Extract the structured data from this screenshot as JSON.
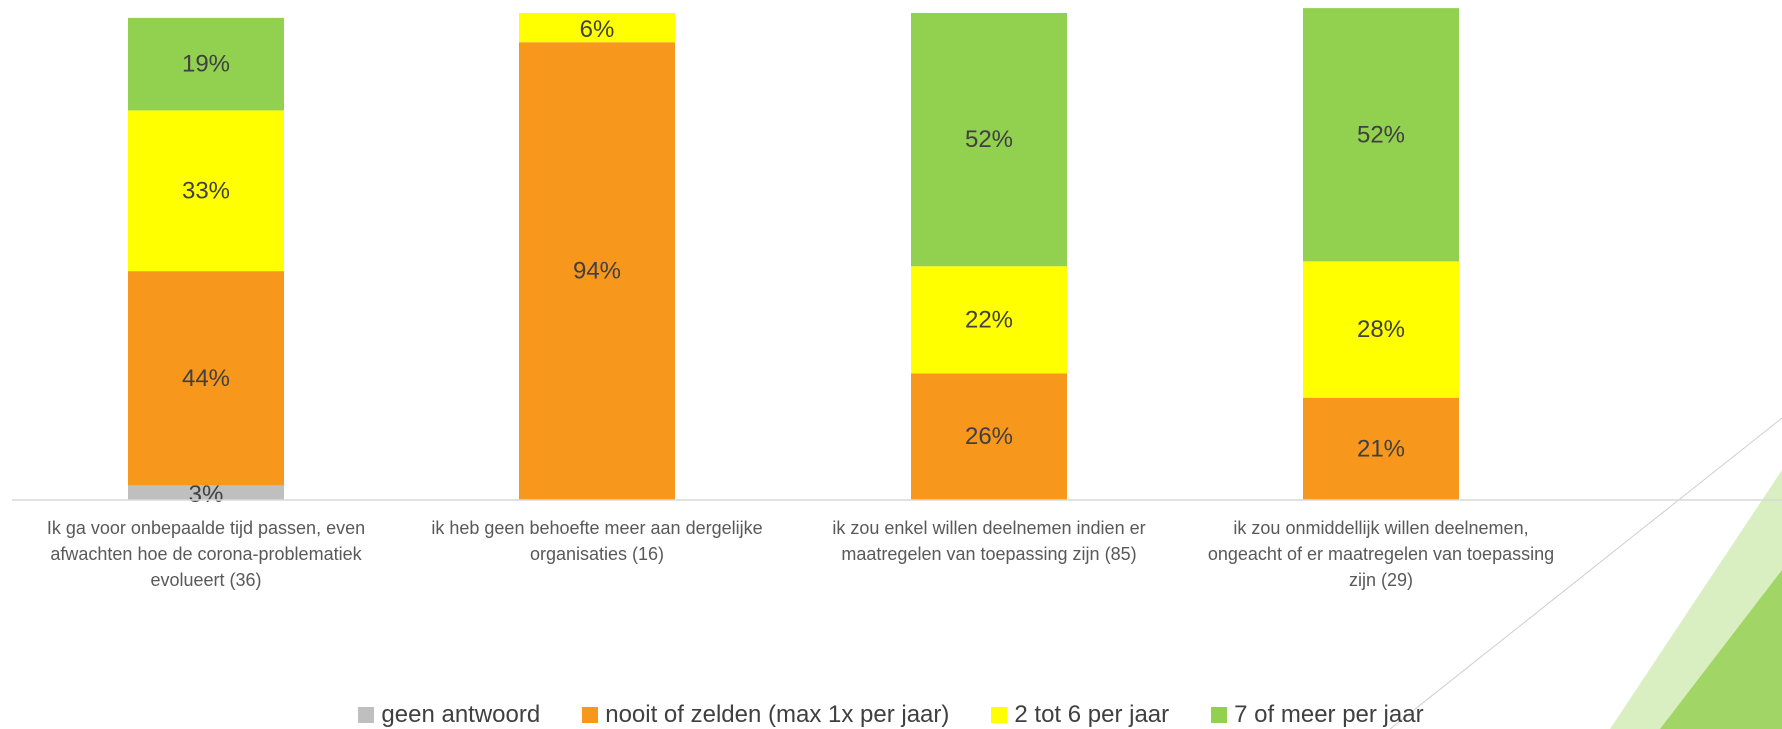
{
  "chart_data": {
    "type": "bar",
    "stacked": true,
    "categories": [
      "Ik ga voor onbepaalde tijd passen, even afwachten hoe de corona-problematiek evolueert (36)",
      "ik heb geen behoefte meer aan dergelijke organisaties (16)",
      "ik zou enkel willen deelnemen indien er maatregelen van toepassing zijn (85)",
      "ik zou onmiddellijk willen deelnemen, ongeacht of er maatregelen van toepassing zijn (29)"
    ],
    "category_lines": [
      [
        "Ik ga voor onbepaalde tijd passen, even",
        "afwachten hoe de corona-problematiek",
        "evolueert (36)"
      ],
      [
        "ik heb geen behoefte meer aan dergelijke",
        "organisaties (16)"
      ],
      [
        "ik zou enkel willen deelnemen indien er",
        "maatregelen van toepassing zijn (85)"
      ],
      [
        "ik zou onmiddellijk willen deelnemen,",
        "ongeacht of er maatregelen van toepassing",
        "zijn (29)"
      ]
    ],
    "series": [
      {
        "name": "geen antwoord",
        "color": "#BFBFBF",
        "values": [
          3,
          0,
          0,
          0
        ]
      },
      {
        "name": "nooit of zelden (max 1x per jaar)",
        "color": "#F7981D",
        "values": [
          44,
          94,
          26,
          21
        ]
      },
      {
        "name": "2 tot 6 per jaar",
        "color": "#FFFF00",
        "values": [
          33,
          6,
          22,
          28
        ]
      },
      {
        "name": "7 of meer per jaar",
        "color": "#92D050",
        "values": [
          19,
          0,
          52,
          52
        ]
      }
    ],
    "value_suffix": "%",
    "ylim": [
      0,
      100
    ],
    "grid": false,
    "legend_position": "bottom"
  },
  "decoration": {
    "accent_color": "#92D050"
  }
}
